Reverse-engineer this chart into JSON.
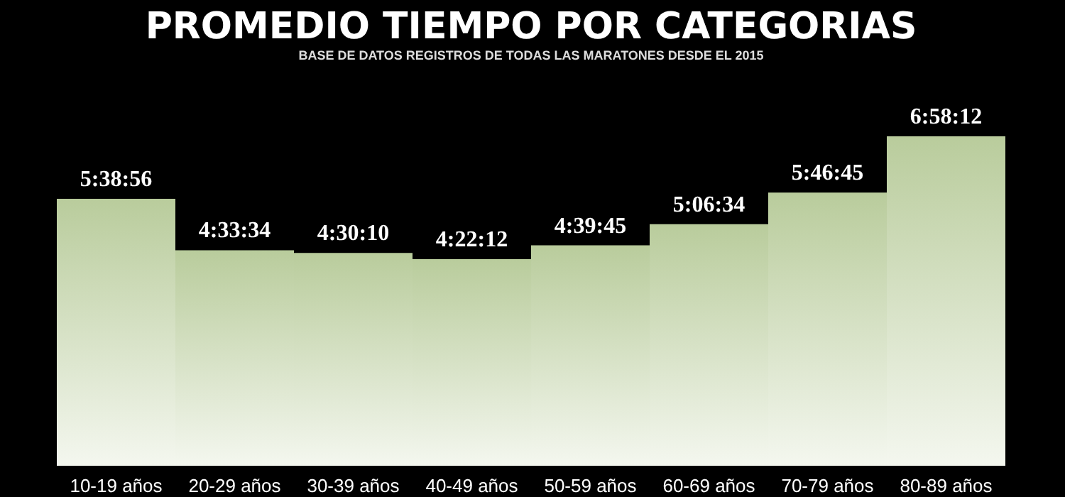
{
  "chart_data": {
    "type": "bar",
    "title": "PROMEDIO TIEMPO POR CATEGORIAS",
    "subtitle": "BASE DE DATOS REGISTROS DE TODAS LAS MARATONES DESDE EL 2015",
    "categories": [
      "10-19 años",
      "20-29 años",
      "30-39 años",
      "40-49 años",
      "50-59 años",
      "60-69 años",
      "70-79 años",
      "80-89 años"
    ],
    "values": [
      20336,
      16414,
      16210,
      15732,
      16785,
      18394,
      20805,
      25092
    ],
    "value_labels": [
      "5:38:56",
      "4:33:34",
      "4:30:10",
      "4:22:12",
      "4:39:45",
      "5:06:34",
      "5:46:45",
      "6:58:12"
    ],
    "color": "#b9cc9c",
    "tick_labels": "x"
  }
}
